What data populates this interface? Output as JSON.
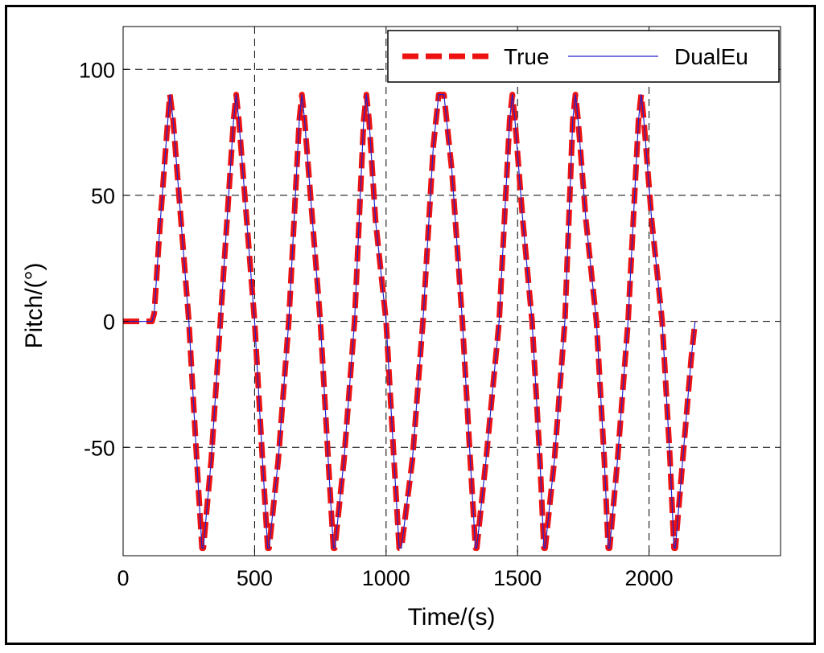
{
  "chart_data": {
    "type": "line",
    "xlabel": "Time/(s)",
    "ylabel": "Pitch/(°)",
    "xlim": [
      0,
      2500
    ],
    "ylim": [
      -93,
      117
    ],
    "xticks": [
      0,
      500,
      1000,
      1500,
      2000
    ],
    "yticks": [
      -50,
      0,
      50,
      100
    ],
    "grid": "dashed",
    "legend_position": "top-right",
    "colors": {
      "true": "#ee1111",
      "dualeu": "#2222cc"
    },
    "series": [
      {
        "name": "True",
        "style": "dashed",
        "x": [
          0,
          110,
          118,
          140,
          170,
          178,
          190,
          220,
          250,
          280,
          300,
          305,
          335,
          370,
          420,
          430,
          440,
          470,
          500,
          530,
          550,
          555,
          590,
          630,
          670,
          680,
          690,
          720,
          750,
          780,
          800,
          805,
          840,
          880,
          915,
          925,
          935,
          960,
          1000,
          1030,
          1050,
          1058,
          1100,
          1140,
          1180,
          1200,
          1220,
          1250,
          1290,
          1320,
          1340,
          1345,
          1380,
          1430,
          1470,
          1480,
          1490,
          1520,
          1555,
          1585,
          1600,
          1605,
          1640,
          1680,
          1710,
          1720,
          1730,
          1760,
          1800,
          1830,
          1845,
          1850,
          1880,
          1920,
          1960,
          1970,
          1980,
          2010,
          2050,
          2080,
          2095,
          2100,
          2120,
          2160,
          2175
        ],
        "values": [
          0,
          0,
          3,
          38,
          80,
          90,
          80,
          40,
          0,
          -55,
          -90,
          -90,
          -55,
          0,
          80,
          90,
          80,
          40,
          0,
          -55,
          -90,
          -90,
          -55,
          0,
          80,
          90,
          80,
          40,
          0,
          -55,
          -90,
          -90,
          -55,
          0,
          80,
          90,
          80,
          40,
          0,
          -55,
          -90,
          -90,
          -55,
          0,
          70,
          90,
          90,
          60,
          0,
          -55,
          -90,
          -90,
          -55,
          0,
          80,
          90,
          80,
          40,
          0,
          -55,
          -90,
          -90,
          -55,
          0,
          80,
          90,
          80,
          40,
          0,
          -55,
          -90,
          -90,
          -55,
          0,
          80,
          90,
          80,
          40,
          0,
          -55,
          -90,
          -90,
          -65,
          -15,
          0
        ]
      },
      {
        "name": "DualEu",
        "style": "solid",
        "x": [
          0,
          110,
          118,
          140,
          170,
          178,
          190,
          220,
          250,
          280,
          300,
          305,
          335,
          370,
          420,
          430,
          440,
          470,
          500,
          530,
          550,
          555,
          590,
          630,
          670,
          680,
          690,
          720,
          750,
          780,
          800,
          805,
          840,
          880,
          915,
          925,
          935,
          960,
          1000,
          1030,
          1050,
          1058,
          1100,
          1140,
          1180,
          1200,
          1220,
          1250,
          1290,
          1320,
          1340,
          1345,
          1380,
          1430,
          1470,
          1480,
          1490,
          1520,
          1555,
          1585,
          1600,
          1605,
          1640,
          1680,
          1710,
          1720,
          1730,
          1760,
          1800,
          1830,
          1845,
          1850,
          1880,
          1920,
          1960,
          1970,
          1980,
          2010,
          2050,
          2080,
          2095,
          2100,
          2120,
          2160,
          2175
        ],
        "values": [
          0,
          0,
          3,
          38,
          80,
          90,
          80,
          40,
          0,
          -55,
          -90,
          -90,
          -55,
          0,
          80,
          90,
          80,
          40,
          0,
          -55,
          -90,
          -90,
          -55,
          0,
          80,
          90,
          80,
          40,
          0,
          -55,
          -90,
          -90,
          -55,
          0,
          80,
          90,
          80,
          40,
          0,
          -55,
          -90,
          -90,
          -55,
          0,
          70,
          90,
          90,
          60,
          0,
          -55,
          -90,
          -90,
          -55,
          0,
          80,
          90,
          80,
          40,
          0,
          -55,
          -90,
          -90,
          -55,
          0,
          80,
          90,
          80,
          40,
          0,
          -55,
          -90,
          -90,
          -55,
          0,
          80,
          90,
          80,
          40,
          0,
          -55,
          -90,
          -90,
          -65,
          -15,
          0
        ]
      }
    ]
  }
}
